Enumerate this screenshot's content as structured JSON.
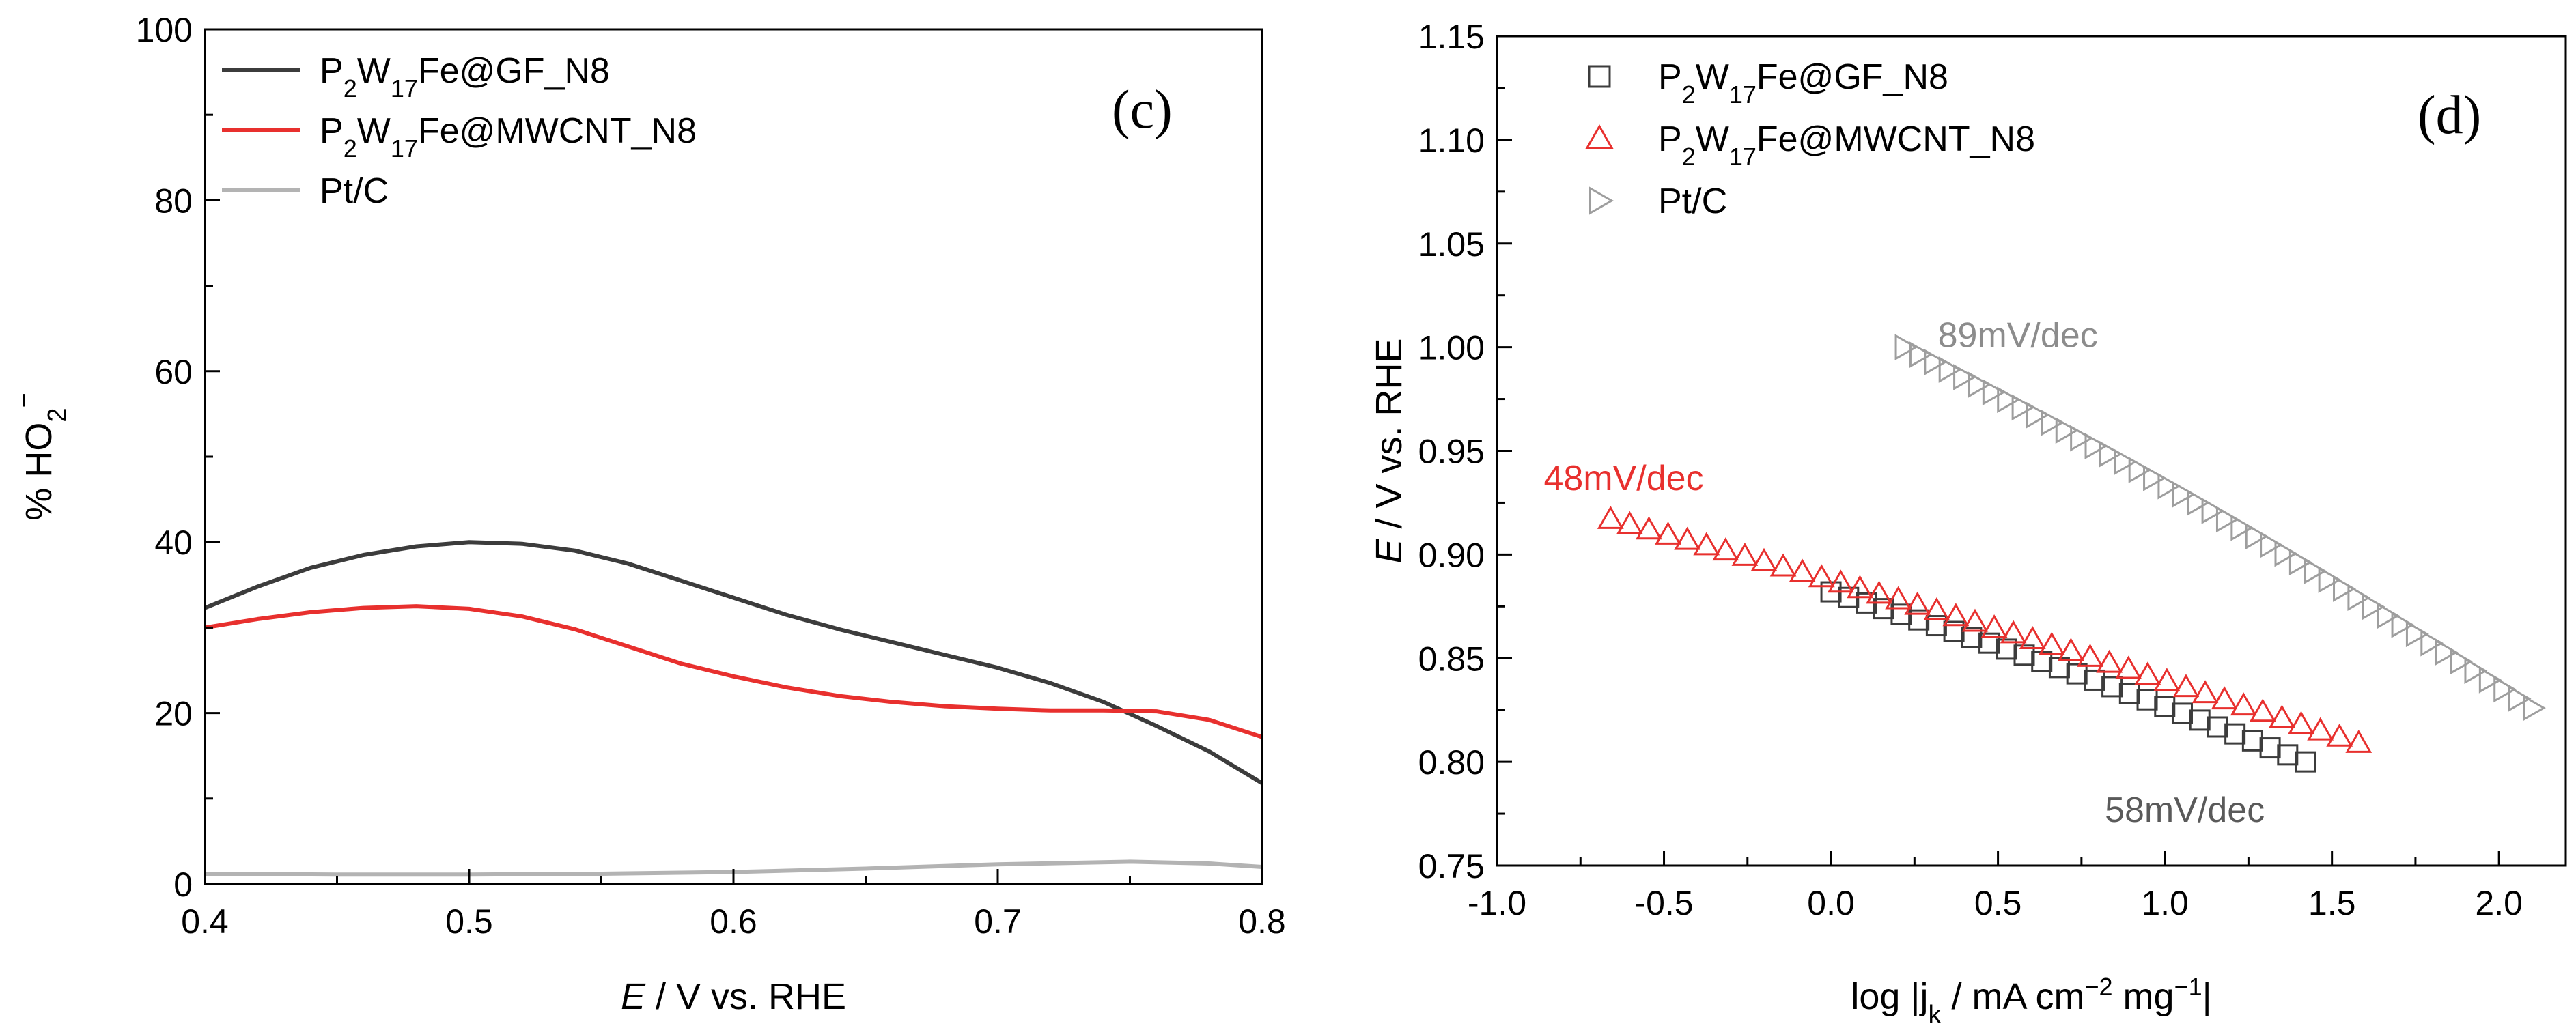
{
  "chart_data": [
    {
      "panel": "(c)",
      "type": "line",
      "xlabel": {
        "italic": "E",
        "rest": " / V vs. RHE"
      },
      "ylabel": {
        "prefix": "% HO",
        "sub": "2",
        "sup": "−"
      },
      "xlim": [
        0.4,
        0.8
      ],
      "ylim": [
        0,
        100
      ],
      "xticks": [
        0.4,
        0.5,
        0.6,
        0.7,
        0.8
      ],
      "xtick_labels": [
        "0.4",
        "0.5",
        "0.6",
        "0.7",
        "0.8"
      ],
      "yticks": [
        0,
        20,
        40,
        60,
        80,
        100
      ],
      "ytick_labels": [
        "0",
        "20",
        "40",
        "60",
        "80",
        "100"
      ],
      "legend": {
        "position": "top-left",
        "entries": [
          {
            "base": "P",
            "s1": "2",
            "mid": "W",
            "s2": "17",
            "tail": "Fe@GF_N8"
          },
          {
            "base": "P",
            "s1": "2",
            "mid": "W",
            "s2": "17",
            "tail": "Fe@MWCNT_N8"
          },
          {
            "base": "Pt/C",
            "s1": "",
            "mid": "",
            "s2": "",
            "tail": ""
          }
        ]
      },
      "series": [
        {
          "name": "P2W17Fe@GF_N8",
          "color": "#3c3c3c",
          "x": [
            0.4,
            0.42,
            0.44,
            0.46,
            0.48,
            0.5,
            0.52,
            0.54,
            0.56,
            0.58,
            0.6,
            0.62,
            0.64,
            0.66,
            0.68,
            0.7,
            0.72,
            0.74,
            0.76,
            0.78,
            0.8
          ],
          "y": [
            32.3,
            34.8,
            37.0,
            38.5,
            39.5,
            40.0,
            39.8,
            39.0,
            37.5,
            35.5,
            33.5,
            31.5,
            29.8,
            28.3,
            26.8,
            25.3,
            23.5,
            21.3,
            18.5,
            15.5,
            11.8
          ]
        },
        {
          "name": "P2W17Fe@MWCNT_N8",
          "color": "#e8302e",
          "x": [
            0.4,
            0.42,
            0.44,
            0.46,
            0.48,
            0.5,
            0.52,
            0.54,
            0.56,
            0.58,
            0.6,
            0.62,
            0.64,
            0.66,
            0.68,
            0.7,
            0.72,
            0.74,
            0.76,
            0.78,
            0.8
          ],
          "y": [
            30.0,
            31.0,
            31.8,
            32.3,
            32.5,
            32.2,
            31.3,
            29.8,
            27.8,
            25.8,
            24.3,
            23.0,
            22.0,
            21.3,
            20.8,
            20.5,
            20.3,
            20.3,
            20.2,
            19.2,
            17.2
          ]
        },
        {
          "name": "Pt/C",
          "color": "#b3b3b3",
          "x": [
            0.4,
            0.45,
            0.5,
            0.55,
            0.6,
            0.65,
            0.7,
            0.75,
            0.78,
            0.8
          ],
          "y": [
            1.2,
            1.1,
            1.1,
            1.2,
            1.4,
            1.8,
            2.3,
            2.6,
            2.4,
            2.0
          ]
        }
      ]
    },
    {
      "panel": "(d)",
      "type": "scatter",
      "xlabel": {
        "pre": "log |j",
        "sub": "k",
        "mid": " / mA cm",
        "sup1": "−2",
        "mid2": " mg",
        "sup2": "−1",
        "end": "|"
      },
      "ylabel": {
        "italic": "E",
        "rest": " / V vs. RHE"
      },
      "xlim": [
        -1.0,
        2.2
      ],
      "ylim": [
        0.75,
        1.15
      ],
      "xticks": [
        -1.0,
        -0.5,
        0.0,
        0.5,
        1.0,
        1.5,
        2.0
      ],
      "xtick_labels": [
        "-1.0",
        "-0.5",
        "0.0",
        "0.5",
        "1.0",
        "1.5",
        "2.0"
      ],
      "yticks": [
        0.75,
        0.8,
        0.85,
        0.9,
        0.95,
        1.0,
        1.05,
        1.1,
        1.15
      ],
      "ytick_labels": [
        "0.75",
        "0.80",
        "0.85",
        "0.90",
        "0.95",
        "1.00",
        "1.05",
        "1.10",
        "1.15"
      ],
      "legend": {
        "position": "top-left",
        "entries": [
          {
            "base": "P",
            "s1": "2",
            "mid": "W",
            "s2": "17",
            "tail": "Fe@GF_N8"
          },
          {
            "base": "P",
            "s1": "2",
            "mid": "W",
            "s2": "17",
            "tail": "Fe@MWCNT_N8"
          },
          {
            "base": "Pt/C",
            "s1": "",
            "mid": "",
            "s2": "",
            "tail": ""
          }
        ]
      },
      "series": [
        {
          "name": "P2W17Fe@GF_N8",
          "marker": "square",
          "color": "#3c3c3c",
          "x_start": 0.0,
          "x_end": 1.42,
          "y_start": 0.882,
          "y_end": 0.8,
          "count": 28
        },
        {
          "name": "P2W17Fe@MWCNT_N8",
          "marker": "triangle-up",
          "color": "#e8302e",
          "x_start": -0.66,
          "x_end": 1.58,
          "y_start": 0.917,
          "y_end": 0.809,
          "count": 40
        },
        {
          "name": "Pt/C",
          "marker": "triangle-right",
          "color": "#9e9e9e",
          "x_start": 0.22,
          "x_end": 2.1,
          "y_start": 1.0,
          "y_end": 0.826,
          "count": 44
        }
      ],
      "annotations": [
        {
          "text": "89mV/dec",
          "x": 0.32,
          "y": 1.0,
          "color": "#8c8c8c",
          "anchor": "start"
        },
        {
          "text": "48mV/dec",
          "x": -0.86,
          "y": 0.931,
          "color": "#e8302e",
          "anchor": "start"
        },
        {
          "text": "58mV/dec",
          "x": 0.82,
          "y": 0.771,
          "color": "#5a5a5a",
          "anchor": "start"
        }
      ]
    }
  ]
}
